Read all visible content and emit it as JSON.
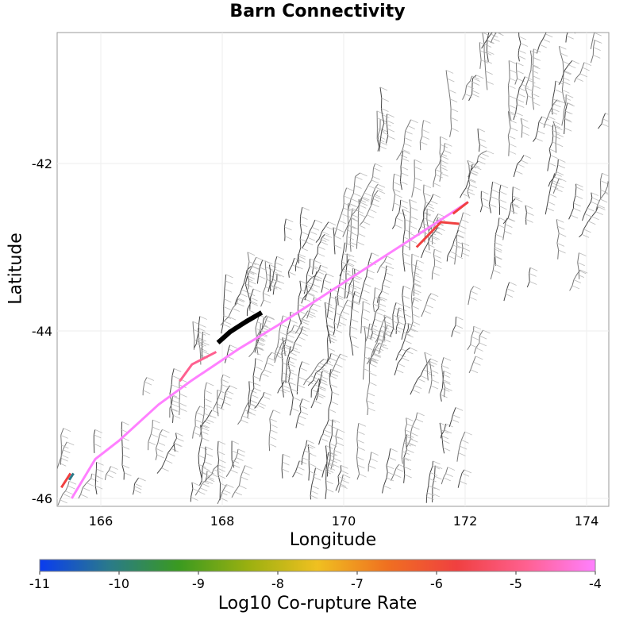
{
  "chart_data": {
    "type": "map",
    "title": "Barn Connectivity",
    "xlabel": "Longitude",
    "ylabel": "Latitude",
    "xlim": [
      165.3,
      174.4
    ],
    "ylim": [
      -46.1,
      -40.45
    ],
    "xticks": [
      166,
      168,
      170,
      172,
      174
    ],
    "yticks": [
      -42,
      -44,
      -46
    ],
    "grid": true,
    "colorbar": {
      "label": "Log10 Co-rupture Rate",
      "range": [
        -11,
        -4
      ],
      "ticks": [
        -11,
        -10,
        -9,
        -8,
        -7,
        -6,
        -5,
        -4
      ],
      "colors": [
        "#0a3cf0",
        "#2a7a8a",
        "#3a9a20",
        "#9ab010",
        "#f0c020",
        "#f07020",
        "#f04040",
        "#ff6090",
        "#ff80ff"
      ],
      "position": "bottom"
    },
    "source_fault": {
      "color": "#000000",
      "points": [
        [
          167.93,
          -44.14
        ],
        [
          168.13,
          -44.01
        ],
        [
          168.39,
          -43.89
        ],
        [
          168.65,
          -43.78
        ]
      ]
    },
    "ruptures": [
      {
        "log10_rate": -4.3,
        "points": [
          [
            165.52,
            -46.0
          ],
          [
            165.91,
            -45.53
          ],
          [
            166.3,
            -45.31
          ],
          [
            166.95,
            -44.88
          ],
          [
            167.48,
            -44.6
          ],
          [
            168.26,
            -44.22
          ],
          [
            168.92,
            -43.93
          ],
          [
            170.22,
            -43.32
          ],
          [
            171.14,
            -42.89
          ],
          [
            172.05,
            -42.46
          ]
        ]
      },
      {
        "log10_rate": -4.6,
        "points": [
          [
            167.3,
            -44.6
          ],
          [
            167.5,
            -44.4
          ],
          [
            167.9,
            -44.25
          ]
        ]
      },
      {
        "log10_rate": -5.6,
        "points": [
          [
            171.8,
            -42.6
          ],
          [
            172.05,
            -42.46
          ]
        ]
      },
      {
        "log10_rate": -5.6,
        "points": [
          [
            171.2,
            -43.0
          ],
          [
            171.4,
            -42.85
          ],
          [
            171.6,
            -42.7
          ],
          [
            171.9,
            -42.72
          ]
        ]
      },
      {
        "log10_rate": -5.7,
        "points": [
          [
            165.35,
            -45.87
          ],
          [
            165.5,
            -45.7
          ]
        ]
      },
      {
        "log10_rate": -10.2,
        "points": [
          [
            165.48,
            -45.78
          ],
          [
            165.55,
            -45.7
          ]
        ]
      }
    ]
  }
}
